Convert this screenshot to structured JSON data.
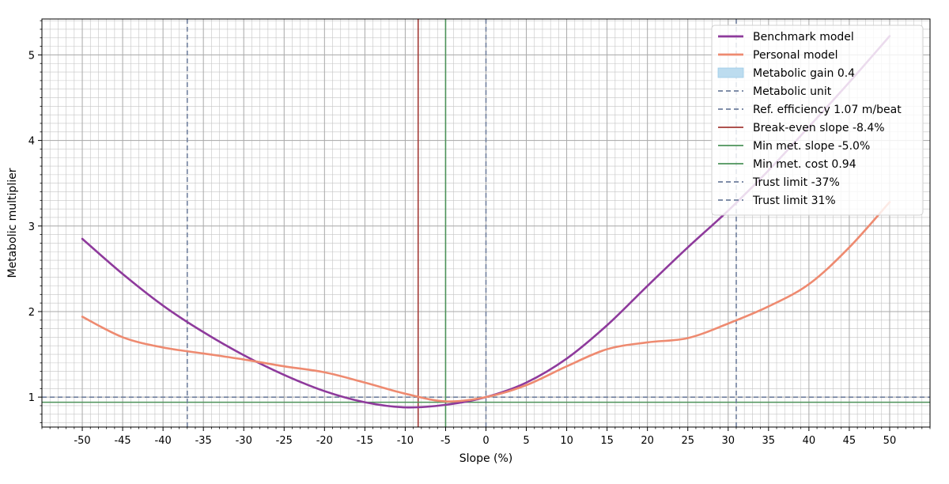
{
  "chart_data": {
    "type": "line",
    "title": "",
    "xlabel": "Slope (%)",
    "ylabel": "Metabolic multiplier",
    "xlim": [
      -55,
      55
    ],
    "ylim": [
      0.65,
      5.42
    ],
    "x_ticks": [
      -50,
      -45,
      -40,
      -35,
      -30,
      -25,
      -20,
      -15,
      -10,
      -5,
      0,
      5,
      10,
      15,
      20,
      25,
      30,
      35,
      40,
      45,
      50
    ],
    "x_tick_labels": [
      "-50",
      "-45",
      "-40",
      "-35",
      "-30",
      "-25",
      "-20",
      "-15",
      "-10",
      "-5",
      "0",
      "5",
      "10",
      "15",
      "20",
      "25",
      "30",
      "35",
      "40",
      "45",
      "50"
    ],
    "y_ticks": [
      1,
      2,
      3,
      4,
      5
    ],
    "y_tick_labels": [
      "1",
      "2",
      "3",
      "4",
      "5"
    ],
    "grid": true,
    "minor_grid": true,
    "legend_position": "top-right",
    "series": [
      {
        "name": "Benchmark model",
        "color": "#8e3a9c",
        "x": [
          -50,
          -45,
          -40,
          -35,
          -30,
          -25,
          -20,
          -15,
          -10,
          -5,
          0,
          5,
          10,
          15,
          20,
          25,
          30,
          35,
          40,
          45,
          50
        ],
        "y": [
          2.85,
          2.44,
          2.07,
          1.76,
          1.49,
          1.26,
          1.07,
          0.94,
          0.88,
          0.91,
          1.0,
          1.17,
          1.45,
          1.84,
          2.3,
          2.75,
          3.18,
          3.65,
          4.16,
          4.68,
          5.22
        ]
      },
      {
        "name": "Personal model",
        "color": "#ee8a70",
        "x": [
          -50,
          -45,
          -40,
          -35,
          -30,
          -25,
          -20,
          -15,
          -10,
          -5,
          0,
          5,
          10,
          15,
          20,
          25,
          30,
          35,
          40,
          45,
          50
        ],
        "y": [
          1.94,
          1.7,
          1.58,
          1.51,
          1.44,
          1.36,
          1.29,
          1.17,
          1.04,
          0.95,
          1.0,
          1.14,
          1.36,
          1.56,
          1.64,
          1.69,
          1.86,
          2.06,
          2.32,
          2.75,
          3.28
        ]
      }
    ],
    "reference_lines": [
      {
        "name": "Metabolic unit",
        "orientation": "horizontal",
        "value": 1.0,
        "color": "#6f7f9d",
        "style": "dashed"
      },
      {
        "name": "Ref. efficiency 1.07 m/beat",
        "orientation": "vertical",
        "value": 0,
        "color": "#6f7f9d",
        "style": "dashed"
      },
      {
        "name": "Break-even slope -8.4%",
        "orientation": "vertical",
        "value": -8.4,
        "color": "#a33a35",
        "style": "solid"
      },
      {
        "name": "Min met. slope -5.0%",
        "orientation": "vertical",
        "value": -5.0,
        "color": "#4c9259",
        "style": "solid"
      },
      {
        "name": "Min met. cost 0.94",
        "orientation": "horizontal",
        "value": 0.94,
        "color": "#4c9259",
        "style": "solid"
      },
      {
        "name": "Trust limit -37%",
        "orientation": "vertical",
        "value": -37,
        "color": "#6f7f9d",
        "style": "dashed"
      },
      {
        "name": "Trust limit 31%",
        "orientation": "vertical",
        "value": 31,
        "color": "#6f7f9d",
        "style": "dashed"
      }
    ],
    "legend": [
      {
        "label": "Benchmark model",
        "kind": "line",
        "color": "#8e3a9c",
        "style": "solid"
      },
      {
        "label": "Personal model",
        "kind": "line",
        "color": "#ee8a70",
        "style": "solid"
      },
      {
        "label": "Metabolic gain 0.4",
        "kind": "patch",
        "color": "#bcdcef",
        "style": "solid"
      },
      {
        "label": "Metabolic unit",
        "kind": "line",
        "color": "#6f7f9d",
        "style": "dashed"
      },
      {
        "label": "Ref. efficiency 1.07 m/beat",
        "kind": "line",
        "color": "#6f7f9d",
        "style": "dashed"
      },
      {
        "label": "Break-even slope -8.4%",
        "kind": "line",
        "color": "#a33a35",
        "style": "solid"
      },
      {
        "label": "Min met. slope -5.0%",
        "kind": "line",
        "color": "#4c9259",
        "style": "solid"
      },
      {
        "label": "Min met. cost 0.94",
        "kind": "line",
        "color": "#4c9259",
        "style": "solid"
      },
      {
        "label": "Trust limit -37%",
        "kind": "line",
        "color": "#6f7f9d",
        "style": "dashed"
      },
      {
        "label": "Trust limit 31%",
        "kind": "line",
        "color": "#6f7f9d",
        "style": "dashed"
      }
    ]
  }
}
